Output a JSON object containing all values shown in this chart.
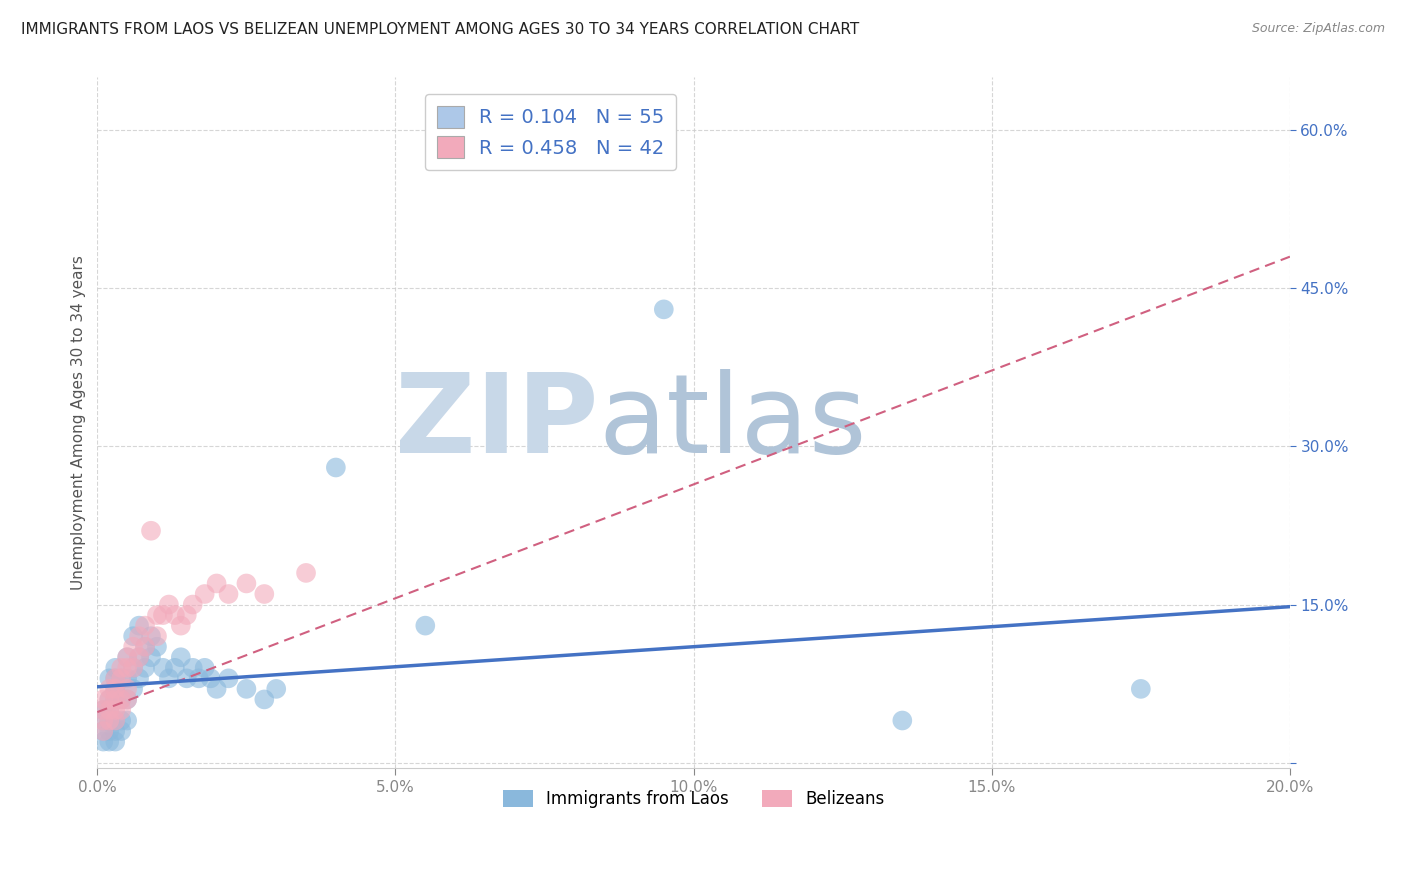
{
  "title": "IMMIGRANTS FROM LAOS VS BELIZEAN UNEMPLOYMENT AMONG AGES 30 TO 34 YEARS CORRELATION CHART",
  "source": "Source: ZipAtlas.com",
  "ylabel": "Unemployment Among Ages 30 to 34 years",
  "xlim": [
    0.0,
    0.2
  ],
  "ylim": [
    -0.005,
    0.65
  ],
  "xticks": [
    0.0,
    0.05,
    0.1,
    0.15,
    0.2
  ],
  "yticks": [
    0.0,
    0.15,
    0.3,
    0.45,
    0.6
  ],
  "xtick_labels": [
    "0.0%",
    "5.0%",
    "10.0%",
    "15.0%",
    "20.0%"
  ],
  "ytick_labels": [
    "",
    "15.0%",
    "30.0%",
    "45.0%",
    "60.0%"
  ],
  "legend1_label": "R = 0.104   N = 55",
  "legend2_label": "R = 0.458   N = 42",
  "legend1_color": "#adc8e8",
  "legend2_color": "#f2aabb",
  "blue_color": "#8ab8dc",
  "pink_color": "#f2aabb",
  "trendline_blue": "#4472c4",
  "trendline_pink": "#d06080",
  "watermark_zip": "ZIP",
  "watermark_atlas": "atlas",
  "watermark_color_zip": "#c8d8e8",
  "watermark_color_atlas": "#b8ccd8",
  "blue_points_x": [
    0.001,
    0.001,
    0.001,
    0.001,
    0.002,
    0.002,
    0.002,
    0.002,
    0.002,
    0.002,
    0.003,
    0.003,
    0.003,
    0.003,
    0.003,
    0.003,
    0.003,
    0.004,
    0.004,
    0.004,
    0.004,
    0.005,
    0.005,
    0.005,
    0.005,
    0.006,
    0.006,
    0.006,
    0.007,
    0.007,
    0.007,
    0.008,
    0.008,
    0.009,
    0.009,
    0.01,
    0.011,
    0.012,
    0.013,
    0.014,
    0.015,
    0.016,
    0.017,
    0.018,
    0.019,
    0.02,
    0.022,
    0.025,
    0.028,
    0.03,
    0.04,
    0.055,
    0.095,
    0.135,
    0.175
  ],
  "blue_points_y": [
    0.05,
    0.04,
    0.03,
    0.02,
    0.08,
    0.06,
    0.05,
    0.04,
    0.03,
    0.02,
    0.09,
    0.08,
    0.07,
    0.06,
    0.04,
    0.03,
    0.02,
    0.08,
    0.06,
    0.04,
    0.03,
    0.1,
    0.08,
    0.06,
    0.04,
    0.12,
    0.09,
    0.07,
    0.13,
    0.1,
    0.08,
    0.11,
    0.09,
    0.12,
    0.1,
    0.11,
    0.09,
    0.08,
    0.09,
    0.1,
    0.08,
    0.09,
    0.08,
    0.09,
    0.08,
    0.07,
    0.08,
    0.07,
    0.06,
    0.07,
    0.28,
    0.13,
    0.43,
    0.04,
    0.07
  ],
  "pink_points_x": [
    0.001,
    0.001,
    0.001,
    0.001,
    0.002,
    0.002,
    0.002,
    0.002,
    0.003,
    0.003,
    0.003,
    0.003,
    0.003,
    0.004,
    0.004,
    0.004,
    0.004,
    0.005,
    0.005,
    0.005,
    0.005,
    0.006,
    0.006,
    0.007,
    0.007,
    0.008,
    0.008,
    0.009,
    0.01,
    0.01,
    0.011,
    0.012,
    0.013,
    0.014,
    0.015,
    0.016,
    0.018,
    0.02,
    0.022,
    0.025,
    0.028,
    0.035
  ],
  "pink_points_y": [
    0.06,
    0.05,
    0.04,
    0.03,
    0.07,
    0.06,
    0.05,
    0.04,
    0.08,
    0.07,
    0.06,
    0.05,
    0.04,
    0.09,
    0.08,
    0.06,
    0.05,
    0.1,
    0.09,
    0.07,
    0.06,
    0.11,
    0.09,
    0.12,
    0.1,
    0.13,
    0.11,
    0.22,
    0.14,
    0.12,
    0.14,
    0.15,
    0.14,
    0.13,
    0.14,
    0.15,
    0.16,
    0.17,
    0.16,
    0.17,
    0.16,
    0.18
  ],
  "blue_trendline_x": [
    0.0,
    0.2
  ],
  "blue_trendline_y": [
    0.072,
    0.148
  ],
  "pink_trendline_x": [
    0.0,
    0.2
  ],
  "pink_trendline_y": [
    0.048,
    0.48
  ],
  "background_color": "#ffffff",
  "grid_color": "#cccccc",
  "axis_color": "#4472c4",
  "title_fontsize": 11,
  "label_fontsize": 11,
  "tick_fontsize": 11
}
